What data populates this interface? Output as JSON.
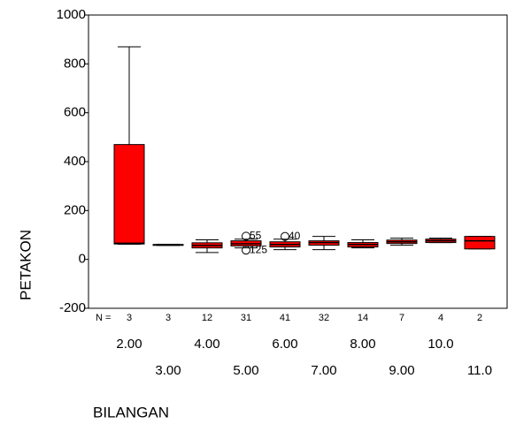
{
  "chart_data": {
    "type": "boxplot",
    "y_label": "PETAKON",
    "x_label": "BILANGAN",
    "n_label": "N =",
    "categories": [
      "2.00",
      "3.00",
      "4.00",
      "5.00",
      "6.00",
      "7.00",
      "8.00",
      "9.00",
      "10.0",
      "11.0"
    ],
    "n": [
      3,
      3,
      12,
      31,
      41,
      32,
      14,
      7,
      4,
      2
    ],
    "color": "#ff0000",
    "boxes": [
      {
        "min": 62,
        "q1": 63,
        "median": 66,
        "q3": 470,
        "max": 870
      },
      {
        "min": 57,
        "q1": 58,
        "median": 60,
        "q3": 61,
        "max": 62
      },
      {
        "min": 28,
        "q1": 47,
        "median": 57,
        "q3": 68,
        "max": 80
      },
      {
        "min": 47,
        "q1": 55,
        "median": 64,
        "q3": 76,
        "max": 83,
        "outliers": [
          {
            "case": "55",
            "value": 95
          },
          {
            "case": "125",
            "value": 38
          }
        ]
      },
      {
        "min": 40,
        "q1": 51,
        "median": 61,
        "q3": 72,
        "max": 83,
        "outliers": [
          {
            "case": "40",
            "value": 94
          }
        ]
      },
      {
        "min": 40,
        "q1": 58,
        "median": 69,
        "q3": 76,
        "max": 94
      },
      {
        "min": 47,
        "q1": 51,
        "median": 61,
        "q3": 69,
        "max": 80
      },
      {
        "min": 58,
        "q1": 65,
        "median": 72,
        "q3": 79,
        "max": 87
      },
      {
        "min": 69,
        "q1": 69,
        "median": 76,
        "q3": 83,
        "max": 87
      },
      {
        "min": 43,
        "q1": 43,
        "median": 76,
        "q3": 94,
        "max": 94
      }
    ],
    "ylim": [
      -200,
      1000
    ],
    "yticks": [
      -200,
      0,
      200,
      400,
      600,
      800,
      1000
    ]
  }
}
